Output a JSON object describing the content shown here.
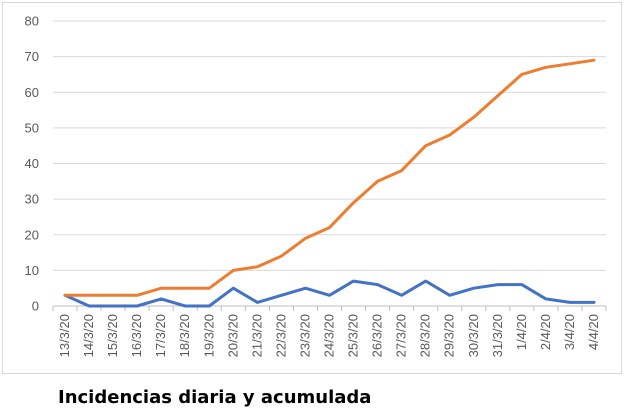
{
  "caption": "Incidencias diaria y acumulada",
  "chart_data": {
    "type": "line",
    "title": "",
    "xlabel": "",
    "ylabel": "",
    "ylim": [
      0,
      80
    ],
    "yticks": [
      0,
      10,
      20,
      30,
      40,
      50,
      60,
      70,
      80
    ],
    "grid": "horizontal",
    "legend": "none",
    "categories": [
      "13/3/20",
      "14/3/20",
      "15/3/20",
      "16/3/20",
      "17/3/20",
      "18/3/20",
      "19/3/20",
      "20/3/20",
      "21/3/20",
      "22/3/20",
      "23/3/20",
      "24/3/20",
      "25/3/20",
      "26/3/20",
      "27/3/20",
      "28/3/20",
      "29/3/20",
      "30/3/20",
      "31/3/20",
      "1/4/20",
      "2/4/20",
      "3/4/20",
      "4/4/20"
    ],
    "series": [
      {
        "color": "#4472c4",
        "values": [
          3,
          0,
          0,
          0,
          2,
          0,
          0,
          5,
          1,
          3,
          5,
          3,
          7,
          6,
          3,
          7,
          3,
          5,
          6,
          6,
          2,
          1,
          1
        ]
      },
      {
        "color": "#ed7d31",
        "values": [
          3,
          3,
          3,
          3,
          5,
          5,
          5,
          10,
          11,
          14,
          19,
          22,
          29,
          35,
          38,
          45,
          48,
          53,
          59,
          65,
          67,
          68,
          69
        ]
      }
    ]
  }
}
